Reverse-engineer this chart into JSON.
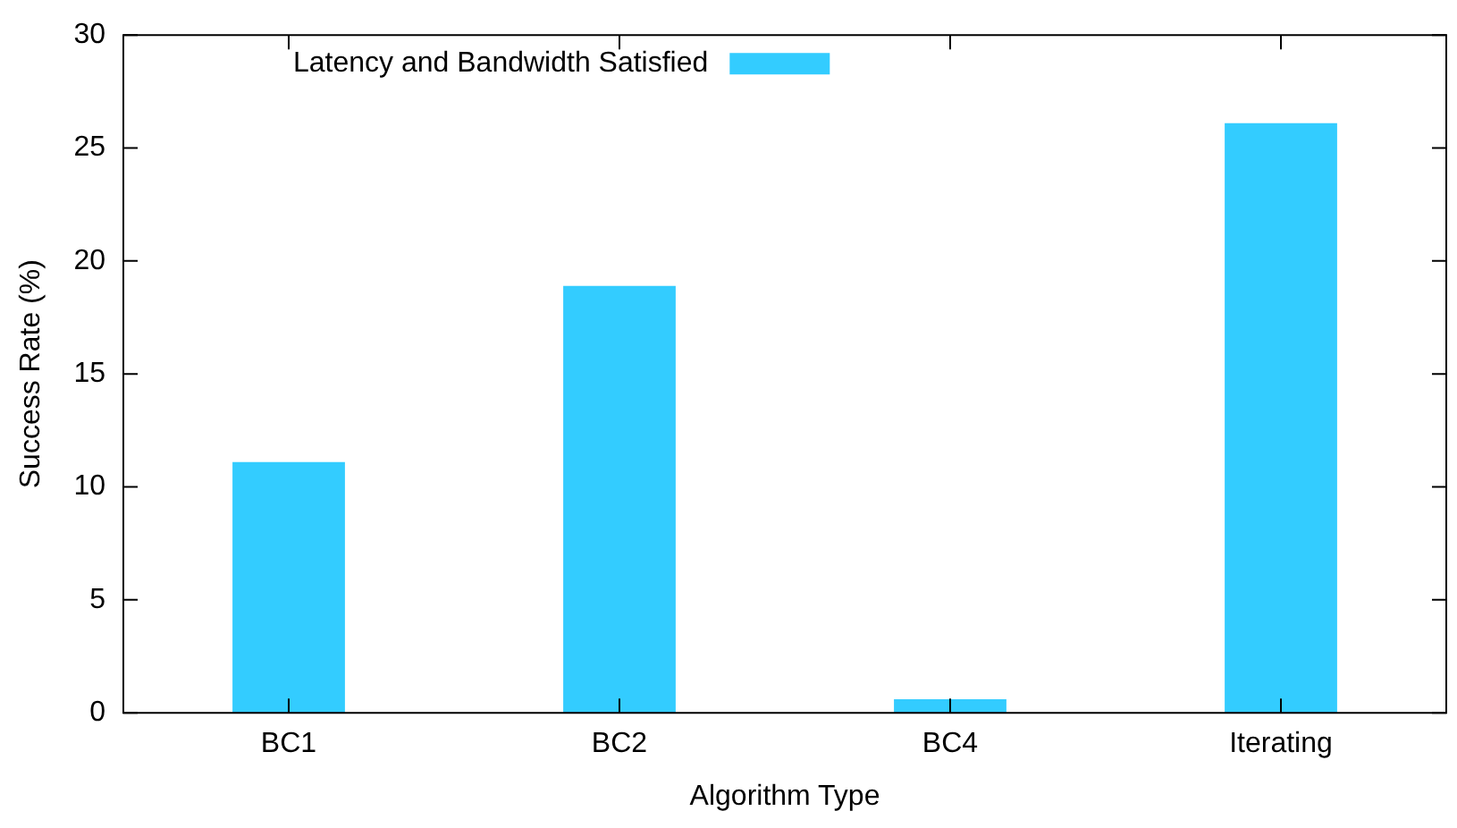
{
  "chart_data": {
    "type": "bar",
    "xlabel": "Algorithm Type",
    "ylabel": "Success Rate (%)",
    "categories": [
      "BC1",
      "BC2",
      "BC4",
      "Iterating"
    ],
    "series": [
      {
        "name": "Latency and Bandwidth Satisfied",
        "color": "#33ccff",
        "values": [
          11.1,
          18.9,
          0.6,
          26.1
        ]
      }
    ],
    "ylim": [
      0,
      30
    ],
    "yticks": [
      0,
      5,
      10,
      15,
      20,
      25,
      30
    ],
    "grid": false,
    "legend": "top left"
  }
}
